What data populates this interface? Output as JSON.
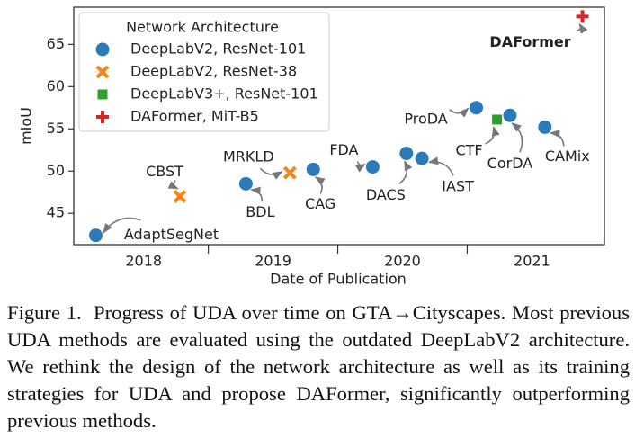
{
  "chart_data": {
    "type": "scatter",
    "xlabel": "Date of Publication",
    "ylabel": "mIoU",
    "xlim": [
      2017.96,
      2022.06
    ],
    "ylim": [
      41.3,
      69.4
    ],
    "xticks": [
      {
        "value": 2018.5,
        "label": "2018"
      },
      {
        "value": 2019.5,
        "label": "2019"
      },
      {
        "value": 2020.5,
        "label": "2020"
      },
      {
        "value": 2021.5,
        "label": "2021"
      }
    ],
    "xminorticks": [
      2019,
      2020,
      2021
    ],
    "yticks": [
      45,
      50,
      55,
      60,
      65
    ],
    "grid": false,
    "legend": "upper left",
    "legend_title": "Network Architecture",
    "series": [
      {
        "name": "DeepLabV2, ResNet-101",
        "color": "#2b7bba",
        "marker": "o",
        "x": [
          2018.13,
          2019.29,
          2019.81,
          2020.27,
          2020.53,
          2020.65,
          2021.07,
          2021.33,
          2021.6
        ],
        "values": [
          42.4,
          48.5,
          50.2,
          50.5,
          52.1,
          51.5,
          57.5,
          56.6,
          55.2
        ],
        "labels": [
          "AdaptSegNet",
          "BDL",
          "CAG",
          "FDA",
          "DACS",
          "IAST",
          "ProDA",
          "CorDA",
          "CAMix"
        ]
      },
      {
        "name": "DeepLabV2, ResNet-38",
        "color": "#f58518",
        "marker": "x",
        "x": [
          2018.78,
          2019.63
        ],
        "values": [
          47.0,
          49.8
        ],
        "labels": [
          "CBST",
          "MRKLD"
        ]
      },
      {
        "name": "DeepLabV3+, ResNet-101",
        "color": "#2ca02c",
        "marker": "s",
        "x": [
          2021.23
        ],
        "values": [
          56.1
        ],
        "labels": [
          "CTF"
        ]
      },
      {
        "name": "DAFormer, MiT-B5",
        "color": "#d62728",
        "marker": "+",
        "x": [
          2021.89
        ],
        "values": [
          68.3
        ],
        "labels": [
          "DAFormer"
        ]
      }
    ]
  },
  "caption": "Figure 1.  Progress of UDA over time on GTA→Cityscapes. Most previous UDA methods are evaluated using the outdated DeepLabV2 architecture. We rethink the design of the network architecture as well as its training strategies for UDA and propose DAFormer, significantly outperforming previous methods."
}
